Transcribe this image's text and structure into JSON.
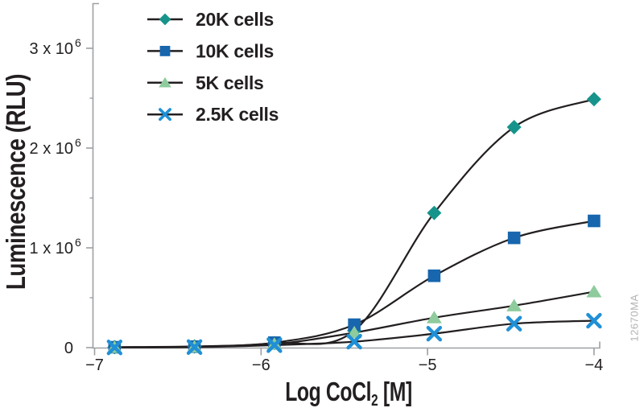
{
  "figure": {
    "watermark": "12670MA"
  },
  "chart_data": {
    "type": "line",
    "title": "",
    "xlabel": {
      "text": "Log CoCl",
      "sub": "2",
      "post": " [M]"
    },
    "ylabel": "Luminescence (RLU)",
    "legend_position": "top-left",
    "grid": false,
    "line_color": "#231f20",
    "axis_color": "#9d9fa2",
    "x_axis": {
      "range": [
        -7,
        -3.96
      ],
      "ticks": [
        {
          "v": -7,
          "label": "−7"
        },
        {
          "v": -6,
          "label": "−6"
        },
        {
          "v": -5,
          "label": "−5"
        },
        {
          "v": -4,
          "label": "−4"
        }
      ]
    },
    "y_axis": {
      "range": [
        0,
        3450000
      ],
      "unit": "RLU",
      "ticks": [
        {
          "v": 0,
          "mantissa": "0",
          "exp": ""
        },
        {
          "v": 1000000,
          "mantissa": "1 x 10",
          "exp": "6"
        },
        {
          "v": 2000000,
          "mantissa": "2 x 10",
          "exp": "6"
        },
        {
          "v": 3000000,
          "mantissa": "3 x 10",
          "exp": "6"
        }
      ],
      "minor_ticks": [
        500000,
        1500000,
        2500000
      ]
    },
    "x": [
      -6.88,
      -6.4,
      -5.92,
      -5.44,
      -4.96,
      -4.48,
      -4.0
    ],
    "series": [
      {
        "name": "20K cells",
        "marker": "diamond",
        "color": "#16948b",
        "values": [
          5000,
          12000,
          45000,
          170000,
          1350000,
          2210000,
          2490000
        ]
      },
      {
        "name": "10K cells",
        "marker": "square",
        "color": "#1766ae",
        "values": [
          4000,
          10000,
          50000,
          230000,
          720000,
          1100000,
          1270000
        ]
      },
      {
        "name": "5K cells",
        "marker": "triangle",
        "color": "#8ecb9d",
        "values": [
          3000,
          8000,
          35000,
          150000,
          300000,
          420000,
          560000
        ]
      },
      {
        "name": "2.5K cells",
        "marker": "x",
        "color": "#2090d6",
        "values": [
          2000,
          5000,
          25000,
          60000,
          140000,
          240000,
          270000
        ]
      }
    ]
  }
}
